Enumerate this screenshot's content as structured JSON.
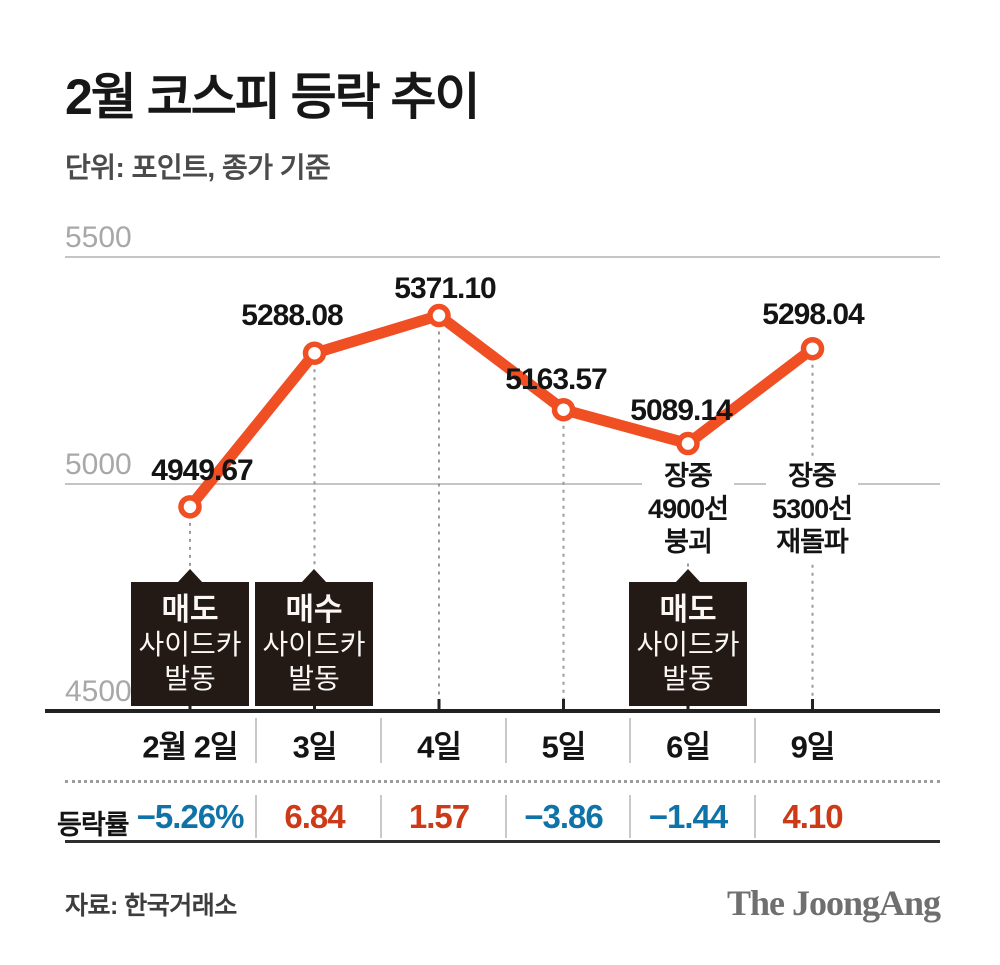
{
  "header": {
    "title": "2월 코스피 등락 추이",
    "subtitle": "단위: 포인트, 종가 기준"
  },
  "footer": {
    "source": "자료: 한국거래소",
    "logo": "The JoongAng"
  },
  "colors": {
    "line": "#f04e23",
    "up": "#cc3a17",
    "down": "#0f73a8",
    "callout_bg": "#231a16"
  },
  "chart_data": {
    "type": "line",
    "title": "2월 코스피 등락 추이",
    "unit_note": "단위: 포인트, 종가 기준",
    "categories": [
      "2월 2일",
      "3일",
      "4일",
      "5일",
      "6일",
      "9일"
    ],
    "values": [
      4949.67,
      5288.08,
      5371.1,
      5163.57,
      5089.14,
      5298.04
    ],
    "point_labels": [
      "4949.67",
      "5288.08",
      "5371.10",
      "5163.57",
      "5089.14",
      "5298.04"
    ],
    "y_ticks": [
      {
        "label": "5500",
        "value": 5500
      },
      {
        "label": "5000",
        "value": 5000
      },
      {
        "label": "4500",
        "value": 4500
      }
    ],
    "ylim": [
      4500,
      5500
    ],
    "grid": "horizontal",
    "legend": "none",
    "change_row": {
      "label": "등락률",
      "values": [
        "−5.26%",
        "6.84",
        "1.57",
        "−3.86",
        "−1.44",
        "4.10"
      ],
      "directions": [
        "down",
        "up",
        "up",
        "down",
        "down",
        "up"
      ]
    },
    "callout_boxes": [
      {
        "column": 0,
        "lines": [
          "매도",
          "사이드카",
          "발동"
        ]
      },
      {
        "column": 1,
        "lines": [
          "매수",
          "사이드카",
          "발동"
        ]
      },
      {
        "column": 4,
        "lines": [
          "매도",
          "사이드카",
          "발동"
        ]
      }
    ],
    "point_notes": [
      {
        "column": 4,
        "lines": [
          "장중",
          "4900선",
          "붕괴"
        ]
      },
      {
        "column": 5,
        "lines": [
          "장중",
          "5300선",
          "재돌파"
        ]
      }
    ]
  }
}
